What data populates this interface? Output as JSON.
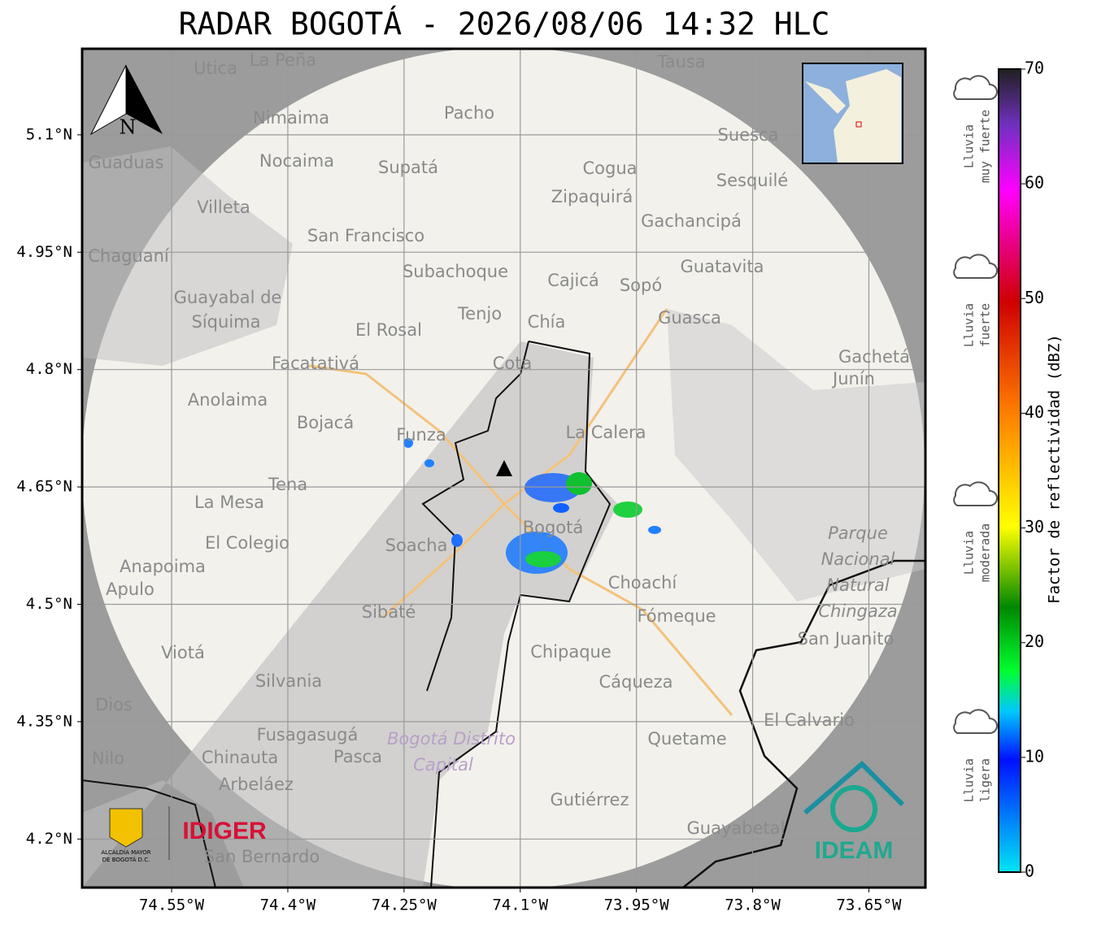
{
  "title": "RADAR BOGOTÁ - 2026/08/06 14:32 HLC",
  "map": {
    "xlim": [
      -74.6655,
      -73.577
    ],
    "ylim": [
      4.138,
      5.21
    ],
    "xticks": [
      {
        "value": -74.55,
        "label": "74.55°W"
      },
      {
        "value": -74.4,
        "label": "74.4°W"
      },
      {
        "value": -74.25,
        "label": "74.25°W"
      },
      {
        "value": -74.1,
        "label": "74.1°W"
      },
      {
        "value": -73.95,
        "label": "73.95°W"
      },
      {
        "value": -73.8,
        "label": "73.8°W"
      },
      {
        "value": -73.65,
        "label": "73.65°W"
      }
    ],
    "yticks": [
      {
        "value": 5.1,
        "label": "5.1°N"
      },
      {
        "value": 4.95,
        "label": "4.95°N"
      },
      {
        "value": 4.8,
        "label": "4.8°N"
      },
      {
        "value": 4.65,
        "label": "4.65°N"
      },
      {
        "value": 4.5,
        "label": "4.5°N"
      },
      {
        "value": 4.35,
        "label": "4.35°N"
      },
      {
        "value": 4.2,
        "label": "4.2°N"
      }
    ],
    "north": "N",
    "places": [
      "La Peña",
      "Utica",
      "Tausa",
      "Pacho",
      "Nimaima",
      "Guaduas",
      "Nocaima",
      "Supatá",
      "Suesca",
      "Cogua",
      "Sesquilé",
      "Villeta",
      "Zipaquirá",
      "Gachancipá",
      "San Francisco",
      "Chaguaní",
      "Guatavita",
      "Subachoque",
      "Cajicá",
      "Sopó",
      "Guayabal de",
      "Síquima",
      "Tenjo",
      "Chía",
      "Guasca",
      "El Rosal",
      "Facatativá",
      "Cota",
      "Gachetá",
      "Junín",
      "Anolaima",
      "Bojacá",
      "Funza",
      "La Calera",
      "Tena",
      "La Mesa",
      "Bogotá",
      "Soacha",
      "El Colegio",
      "Anapoima",
      "Apulo",
      "Choachí",
      "Sibaté",
      "Fómeque",
      "San Juanito",
      "Chipaque",
      "Viotá",
      "Silvania",
      "Cáqueza",
      "Dios",
      "El Calvario",
      "Fusagasugá",
      "Quetame",
      "Nilo",
      "Chinauta",
      "Pasca",
      "Arbeláez",
      "Gutiérrez",
      "Guayabetal",
      "San Bernardo"
    ],
    "park": [
      "Parque",
      "Nacional",
      "Natural",
      "Chingaza"
    ],
    "district": [
      "Bogotá Distrito",
      "Capital"
    ],
    "logos": {
      "alcaldia": [
        "ALCALDÍA MAYOR",
        "DE BOGOTÁ D.C."
      ],
      "idiger": "IDIGER",
      "ideam": "IDEAM"
    }
  },
  "colorbar": {
    "label": "Factor de reflectividad (dBZ)",
    "lim": [
      0,
      70
    ],
    "ticks": [
      0,
      10,
      20,
      30,
      40,
      50,
      60,
      70
    ]
  },
  "legend": [
    [
      "Lluvia",
      "muy fuerte"
    ],
    [
      "Lluvia",
      "fuerte"
    ],
    [
      "Lluvia",
      "moderada"
    ],
    [
      "Lluvia",
      "ligera"
    ]
  ]
}
